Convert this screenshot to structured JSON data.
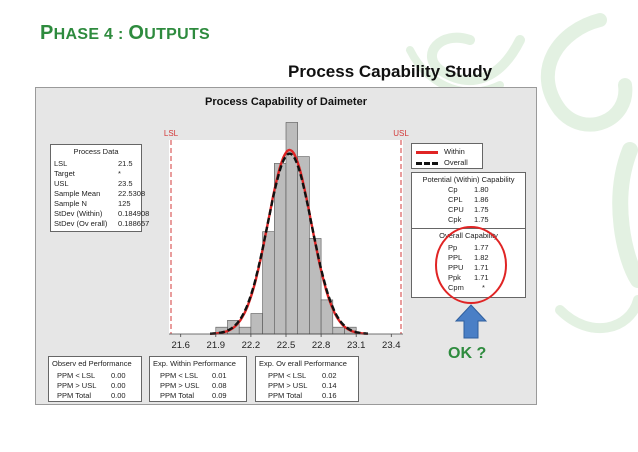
{
  "slide": {
    "title_first": "P",
    "title_rest1": "HASE 4 : ",
    "title_o": "O",
    "title_rest2": "UTPUTS",
    "subtitle": "Process Capability Study",
    "ok_label": "OK ?"
  },
  "colors": {
    "title_green": "#2e8b3e",
    "within_curve": "#e02424",
    "overall_curve": "#111111",
    "spec_lines": "#d33b3b",
    "bars": "#bcbcbc",
    "panel": "#e6e6e6",
    "arrow": "#4a7fc6",
    "circle": "#e02424"
  },
  "icons": {
    "arrow": "up-arrow-icon",
    "highlight": "red-circle-icon"
  },
  "chart_data": {
    "type": "bar",
    "title": "Process Capability of Daimeter",
    "xlabel": "",
    "ylabel": "",
    "xlim": [
      21.5,
      23.5
    ],
    "xticks": [
      "21.6",
      "21.9",
      "22.2",
      "22.5",
      "22.8",
      "23.1",
      "23.4"
    ],
    "xtick_values": [
      21.6,
      21.9,
      22.2,
      22.5,
      22.8,
      23.1,
      23.4
    ],
    "bins": [
      21.9,
      22.0,
      22.1,
      22.2,
      22.3,
      22.4,
      22.5,
      22.6,
      22.7,
      22.8,
      22.9,
      23.0,
      23.1
    ],
    "bin_width": 0.1,
    "counts": [
      1,
      2,
      1,
      3,
      15,
      25,
      31,
      26,
      14,
      5,
      1,
      1,
      0
    ],
    "grid": false,
    "spec_limits": {
      "lsl_label": "LSL",
      "usl_label": "USL",
      "lsl": 21.5,
      "usl": 23.5
    },
    "series": [
      {
        "name": "Within",
        "mean": 22.5308,
        "stdev": 0.184908
      },
      {
        "name": "Overall",
        "mean": 22.5308,
        "stdev": 0.188657
      }
    ],
    "legend_position": "right"
  },
  "process_data": {
    "header": "Process Data",
    "rows": [
      {
        "k": "LSL",
        "v": "21.5"
      },
      {
        "k": "Target",
        "v": "*"
      },
      {
        "k": "USL",
        "v": "23.5"
      },
      {
        "k": "Sample Mean",
        "v": "22.5308"
      },
      {
        "k": "Sample N",
        "v": "125"
      },
      {
        "k": "StDev (Within)",
        "v": "0.184908"
      },
      {
        "k": "StDev (Ov erall)",
        "v": "0.188657"
      }
    ]
  },
  "within_capability": {
    "header": "Potential (Within) Capability",
    "rows": [
      {
        "k": "Cp",
        "v": "1.80"
      },
      {
        "k": "CPL",
        "v": "1.86"
      },
      {
        "k": "CPU",
        "v": "1.75"
      },
      {
        "k": "Cpk",
        "v": "1.75"
      }
    ]
  },
  "overall_capability": {
    "header": "Overall Capability",
    "rows": [
      {
        "k": "Pp",
        "v": "1.77"
      },
      {
        "k": "PPL",
        "v": "1.82"
      },
      {
        "k": "PPU",
        "v": "1.71"
      },
      {
        "k": "Ppk",
        "v": "1.71"
      },
      {
        "k": "Cpm",
        "v": "*"
      }
    ]
  },
  "observed": {
    "header": "Observ ed Performance",
    "rows": [
      {
        "k": "PPM < LSL",
        "v": "0.00"
      },
      {
        "k": "PPM > USL",
        "v": "0.00"
      },
      {
        "k": "PPM Total",
        "v": "0.00"
      }
    ]
  },
  "exp_within": {
    "header": "Exp. Within Performance",
    "rows": [
      {
        "k": "PPM < LSL",
        "v": "0.01"
      },
      {
        "k": "PPM > USL",
        "v": "0.08"
      },
      {
        "k": "PPM Total",
        "v": "0.09"
      }
    ]
  },
  "exp_overall": {
    "header": "Exp. Ov erall Performance",
    "rows": [
      {
        "k": "PPM < LSL",
        "v": "0.02"
      },
      {
        "k": "PPM > USL",
        "v": "0.14"
      },
      {
        "k": "PPM Total",
        "v": "0.16"
      }
    ]
  }
}
